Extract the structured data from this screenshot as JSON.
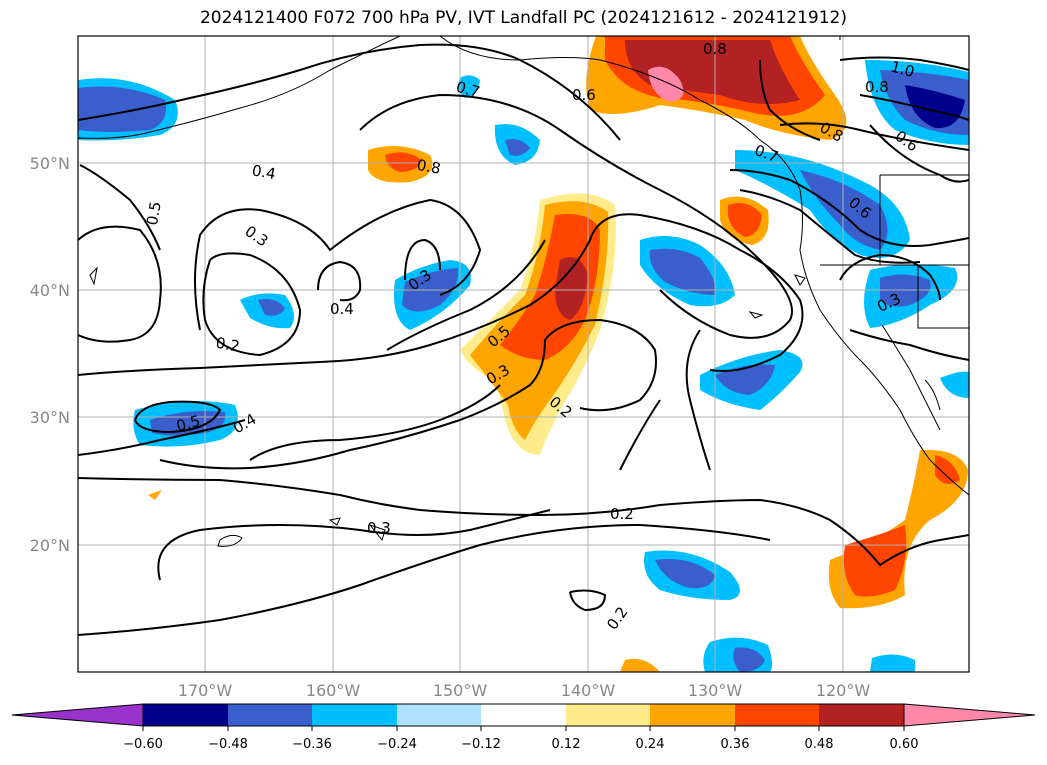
{
  "title": "2024121400 F072 700 hPa PV, IVT Landfall PC (2024121612 - 2024121912)",
  "map": {
    "lon_range": [
      -180,
      -110
    ],
    "lat_range": [
      10,
      60
    ],
    "gridlines": true,
    "lon_ticks": [
      "170°W",
      "160°W",
      "150°W",
      "140°W",
      "130°W",
      "120°W"
    ],
    "lat_ticks": [
      "50°N",
      "40°N",
      "30°N",
      "20°N"
    ],
    "contour_labels": [
      "0.8",
      "1.0",
      "0.8",
      "0.6",
      "0.8",
      "0.7",
      "0.6",
      "0.7",
      "0.4",
      "0.8",
      "0.5",
      "0.3",
      "0.6",
      "0.3",
      "0.4",
      "0.3",
      "0.5",
      "0.3",
      "0.2",
      "0.2",
      "0.5",
      "0.4",
      "0.2",
      "0.3",
      "0.2"
    ]
  },
  "colorbar": {
    "colors": [
      "#9932cc",
      "#00008b",
      "#3a5fcd",
      "#00bfff",
      "#b0e2ff",
      "#ffffff",
      "#ffeb8a",
      "#ffa500",
      "#ff4500",
      "#b22222",
      "#ff88aa"
    ],
    "tick_labels": [
      "−0.60",
      "−0.48",
      "−0.36",
      "−0.24",
      "−0.12",
      "0.12",
      "0.24",
      "0.36",
      "0.48",
      "0.60"
    ]
  }
}
